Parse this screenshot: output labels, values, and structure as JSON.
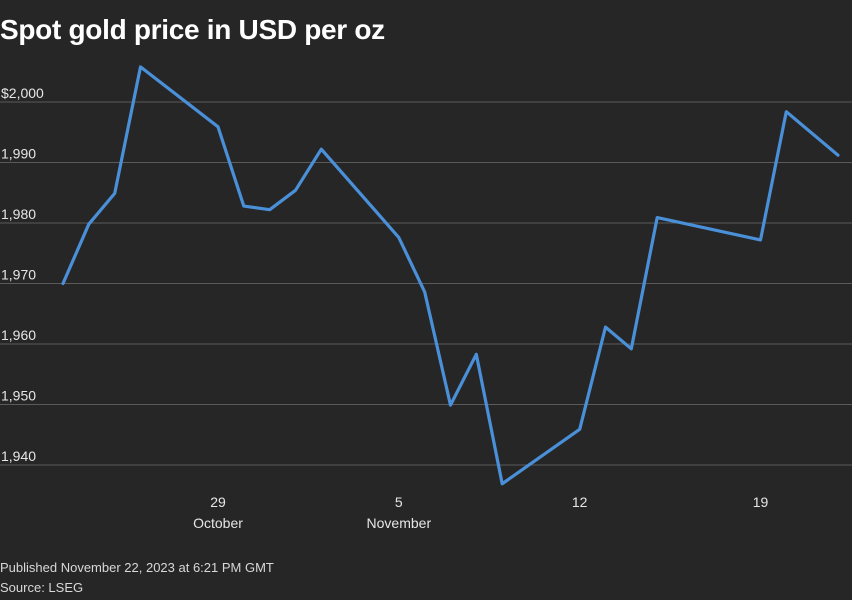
{
  "chart_data": {
    "type": "line",
    "title": "Spot gold price in USD per oz",
    "xlabel": "",
    "ylabel": "",
    "ylim": [
      1932,
      2010
    ],
    "yticks": [
      {
        "value": 1940,
        "label": "1,940"
      },
      {
        "value": 1950,
        "label": "1,950"
      },
      {
        "value": 1960,
        "label": "1,960"
      },
      {
        "value": 1970,
        "label": "1,970"
      },
      {
        "value": 1980,
        "label": "1,980"
      },
      {
        "value": 1990,
        "label": "1,990"
      },
      {
        "value": 2000,
        "label": "$2,000"
      }
    ],
    "xlim": [
      "2023-10-23",
      "2023-11-22"
    ],
    "xticks": [
      {
        "date": "2023-10-29",
        "label": "29",
        "sublabel": "October"
      },
      {
        "date": "2023-11-05",
        "label": "5",
        "sublabel": "November"
      },
      {
        "date": "2023-11-12",
        "label": "12",
        "sublabel": ""
      },
      {
        "date": "2023-11-19",
        "label": "19",
        "sublabel": ""
      }
    ],
    "series": [
      {
        "name": "Spot gold",
        "color": "#4a90d9",
        "points": [
          {
            "x": "2023-10-23",
            "y": 1970.0
          },
          {
            "x": "2023-10-24",
            "y": 1979.8
          },
          {
            "x": "2023-10-25",
            "y": 1984.9
          },
          {
            "x": "2023-10-26",
            "y": 2005.8
          },
          {
            "x": "2023-10-29",
            "y": 1995.9
          },
          {
            "x": "2023-10-30",
            "y": 1982.8
          },
          {
            "x": "2023-10-31",
            "y": 1982.2
          },
          {
            "x": "2023-11-01",
            "y": 1985.4
          },
          {
            "x": "2023-11-02",
            "y": 1992.2
          },
          {
            "x": "2023-11-05",
            "y": 1977.6
          },
          {
            "x": "2023-11-06",
            "y": 1968.6
          },
          {
            "x": "2023-11-07",
            "y": 1949.9
          },
          {
            "x": "2023-11-08",
            "y": 1958.3
          },
          {
            "x": "2023-11-09",
            "y": 1936.9
          },
          {
            "x": "2023-11-12",
            "y": 1945.9
          },
          {
            "x": "2023-11-13",
            "y": 1962.8
          },
          {
            "x": "2023-11-14",
            "y": 1959.2
          },
          {
            "x": "2023-11-15",
            "y": 1980.9
          },
          {
            "x": "2023-11-19",
            "y": 1977.2
          },
          {
            "x": "2023-11-20",
            "y": 1998.4
          },
          {
            "x": "2023-11-22",
            "y": 1991.2
          }
        ]
      }
    ]
  },
  "footer": {
    "published": "Published November 22, 2023 at 6:21 PM GMT",
    "source": "Source: LSEG"
  },
  "colors": {
    "background": "#262626",
    "gridline": "#5a5a5a",
    "line": "#4a90d9",
    "text": "#ffffff"
  }
}
